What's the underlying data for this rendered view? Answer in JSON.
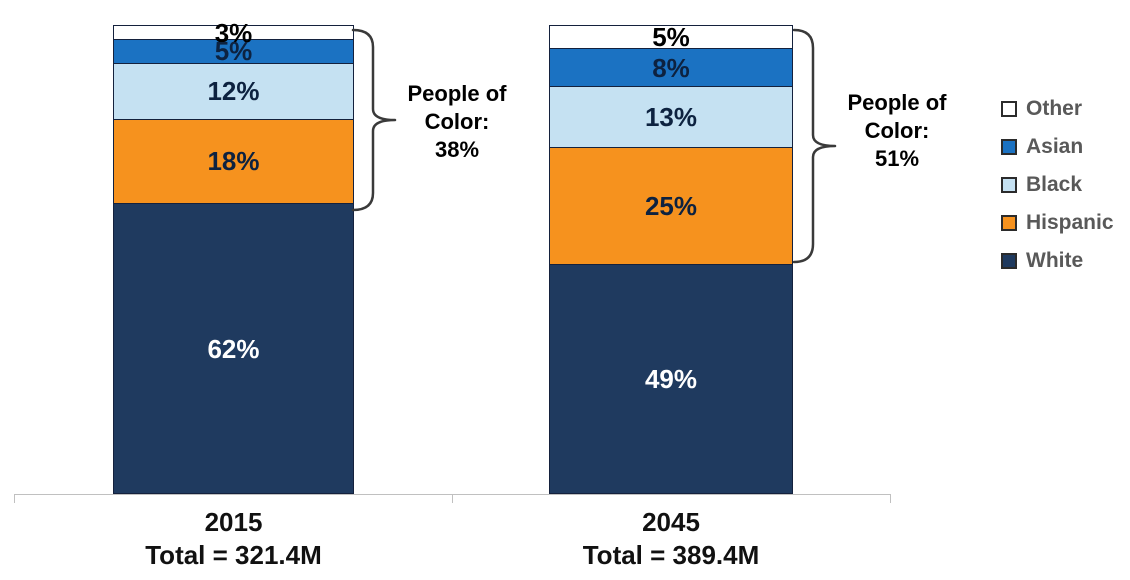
{
  "chart_data": {
    "type": "bar",
    "variant": "stacked-column",
    "categories": [
      "2015",
      "2045"
    ],
    "category_totals": [
      "Total = 321.4M",
      "Total = 389.4M"
    ],
    "ylim": [
      0,
      100
    ],
    "unit": "%",
    "stack_order_top_to_bottom": [
      "Other",
      "Asian",
      "Black",
      "Hispanic",
      "White"
    ],
    "series": [
      {
        "name": "Other",
        "color": "#FFFFFF",
        "label_color": "#000000",
        "values": [
          3,
          5
        ],
        "labels": [
          "3%",
          "5%"
        ]
      },
      {
        "name": "Asian",
        "color": "#1B72C2",
        "label_color": "#0d2240",
        "values": [
          5,
          8
        ],
        "labels": [
          "5%",
          "8%"
        ]
      },
      {
        "name": "Black",
        "color": "#C5E1F2",
        "label_color": "#0d2240",
        "values": [
          12,
          13
        ],
        "labels": [
          "12%",
          "13%"
        ]
      },
      {
        "name": "Hispanic",
        "color": "#F6921E",
        "label_color": "#0d2240",
        "values": [
          18,
          25
        ],
        "labels": [
          "18%",
          "25%"
        ]
      },
      {
        "name": "White",
        "color": "#1F3A5F",
        "label_color": "#FFFFFF",
        "values": [
          62,
          49
        ],
        "labels": [
          "62%",
          "49%"
        ]
      }
    ],
    "annotations": [
      {
        "line1": "People of",
        "line2": "Color:",
        "line3": "38%",
        "value": 38,
        "category": "2015"
      },
      {
        "line1": "People of",
        "line2": "Color:",
        "line3": "51%",
        "value": 51,
        "category": "2045"
      }
    ],
    "legend": {
      "position": "right",
      "entries": [
        "Other",
        "Asian",
        "Black",
        "Hispanic",
        "White"
      ]
    },
    "colors": {
      "segment_border": "#14213d",
      "axis": "#C0C0C0",
      "legend_text": "#595959",
      "brace": "#3a3a3a",
      "background": "#FFFFFF"
    },
    "grid": false
  }
}
